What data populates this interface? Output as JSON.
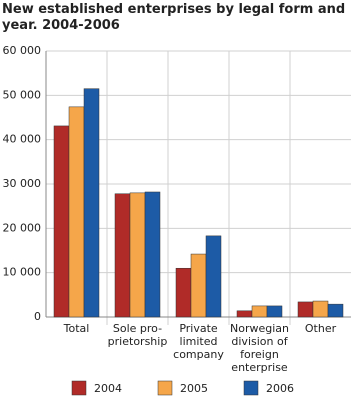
{
  "chart_data": {
    "type": "bar",
    "title": "New established enterprises by legal form and year. 2004-2006",
    "categories": [
      "Total",
      "Sole pro-\nprietorship",
      "Private\nlimited\ncompany",
      "Norwegian\ndivision of\nforeign\nenterprise",
      "Other"
    ],
    "series": [
      {
        "name": "2004",
        "color": "#b02b28",
        "values": [
          43100,
          27800,
          11000,
          1400,
          3400
        ]
      },
      {
        "name": "2005",
        "color": "#f5a64a",
        "values": [
          47400,
          28000,
          14200,
          2500,
          3600
        ]
      },
      {
        "name": "2006",
        "color": "#1d5ba6",
        "values": [
          51500,
          28200,
          18300,
          2500,
          2900
        ]
      }
    ],
    "ylim": [
      0,
      60000
    ],
    "yticks": [
      {
        "value": 0,
        "label": "0"
      },
      {
        "value": 10000,
        "label": "10 000"
      },
      {
        "value": 20000,
        "label": "20 000"
      },
      {
        "value": 30000,
        "label": "30 000"
      },
      {
        "value": 40000,
        "label": "40 000"
      },
      {
        "value": 50000,
        "label": "50 000"
      },
      {
        "value": 60000,
        "label": "60 000"
      }
    ],
    "grid": true
  }
}
